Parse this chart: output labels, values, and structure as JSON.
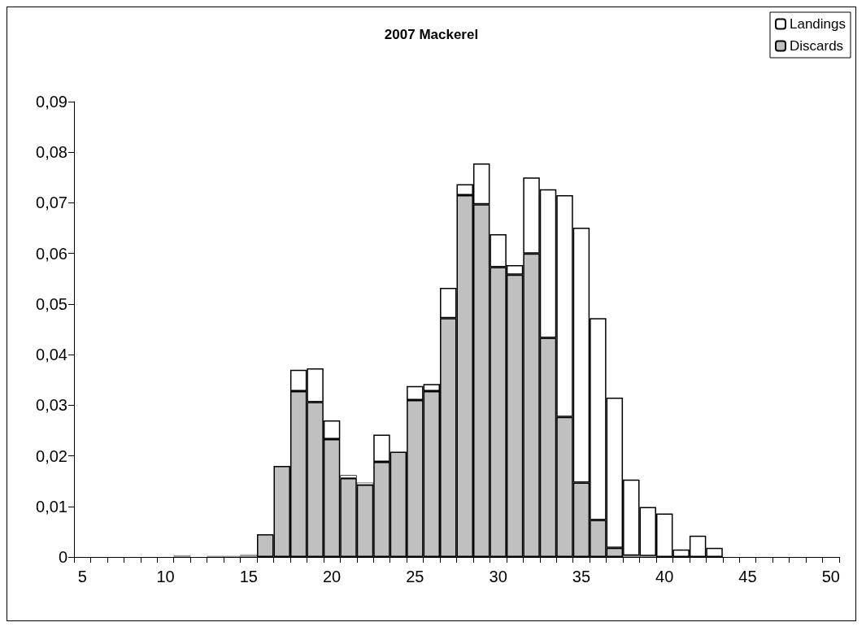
{
  "chart_data": {
    "type": "bar",
    "title": "2007 Mackerel",
    "stacked": true,
    "categories": [
      "5",
      null,
      null,
      null,
      null,
      "10",
      null,
      null,
      null,
      null,
      "15",
      null,
      null,
      null,
      null,
      "20",
      null,
      null,
      null,
      null,
      "25",
      null,
      null,
      null,
      null,
      "30",
      null,
      null,
      null,
      null,
      "35",
      null,
      null,
      null,
      null,
      "40",
      null,
      null,
      null,
      null,
      "45",
      null,
      null,
      null,
      null,
      "50"
    ],
    "series": [
      {
        "name": "Discards",
        "color": "#c0c0c0",
        "values": [
          null,
          null,
          null,
          null,
          null,
          null,
          0.0003,
          null,
          0.0002,
          0.0002,
          0.0003,
          0.0045,
          0.018,
          0.0328,
          0.0306,
          0.0233,
          0.0156,
          0.0143,
          0.0188,
          0.0208,
          0.031,
          0.0328,
          0.0472,
          0.0715,
          0.0697,
          0.0573,
          0.0558,
          0.06,
          0.0433,
          0.0277,
          0.0147,
          0.0073,
          0.0018,
          0.0003,
          0.0002,
          null,
          null,
          null,
          null,
          null,
          null,
          null,
          null,
          null,
          null,
          null
        ]
      },
      {
        "name": "Landings",
        "color": "#ffffff",
        "values": [
          null,
          null,
          null,
          null,
          null,
          null,
          null,
          null,
          null,
          null,
          0.0002,
          null,
          null,
          0.0042,
          0.0067,
          0.0037,
          0.0006,
          0.0004,
          0.0054,
          null,
          0.0028,
          0.0014,
          0.006,
          0.0022,
          0.0081,
          0.0065,
          0.0019,
          0.015,
          0.0294,
          0.0438,
          0.0504,
          0.0399,
          0.0297,
          0.015,
          0.0097,
          0.0086,
          0.0015,
          0.0042,
          0.0018,
          null,
          null,
          null,
          null,
          null,
          null,
          null
        ]
      }
    ],
    "ylim": [
      0,
      0.09
    ],
    "yticks": [
      0,
      {
        "value": 0.01,
        "label": "0,01"
      },
      {
        "value": 0.02,
        "label": "0,02"
      },
      {
        "value": 0.03,
        "label": "0,03"
      },
      {
        "value": 0.04,
        "label": "0,04"
      },
      {
        "value": 0.05,
        "label": "0,05"
      },
      {
        "value": 0.06,
        "label": "0,06"
      },
      {
        "value": 0.07,
        "label": "0,07"
      },
      {
        "value": 0.08,
        "label": "0,08"
      },
      {
        "value": 0.09,
        "label": "0,09"
      }
    ],
    "legend": "top right",
    "grid": false
  }
}
